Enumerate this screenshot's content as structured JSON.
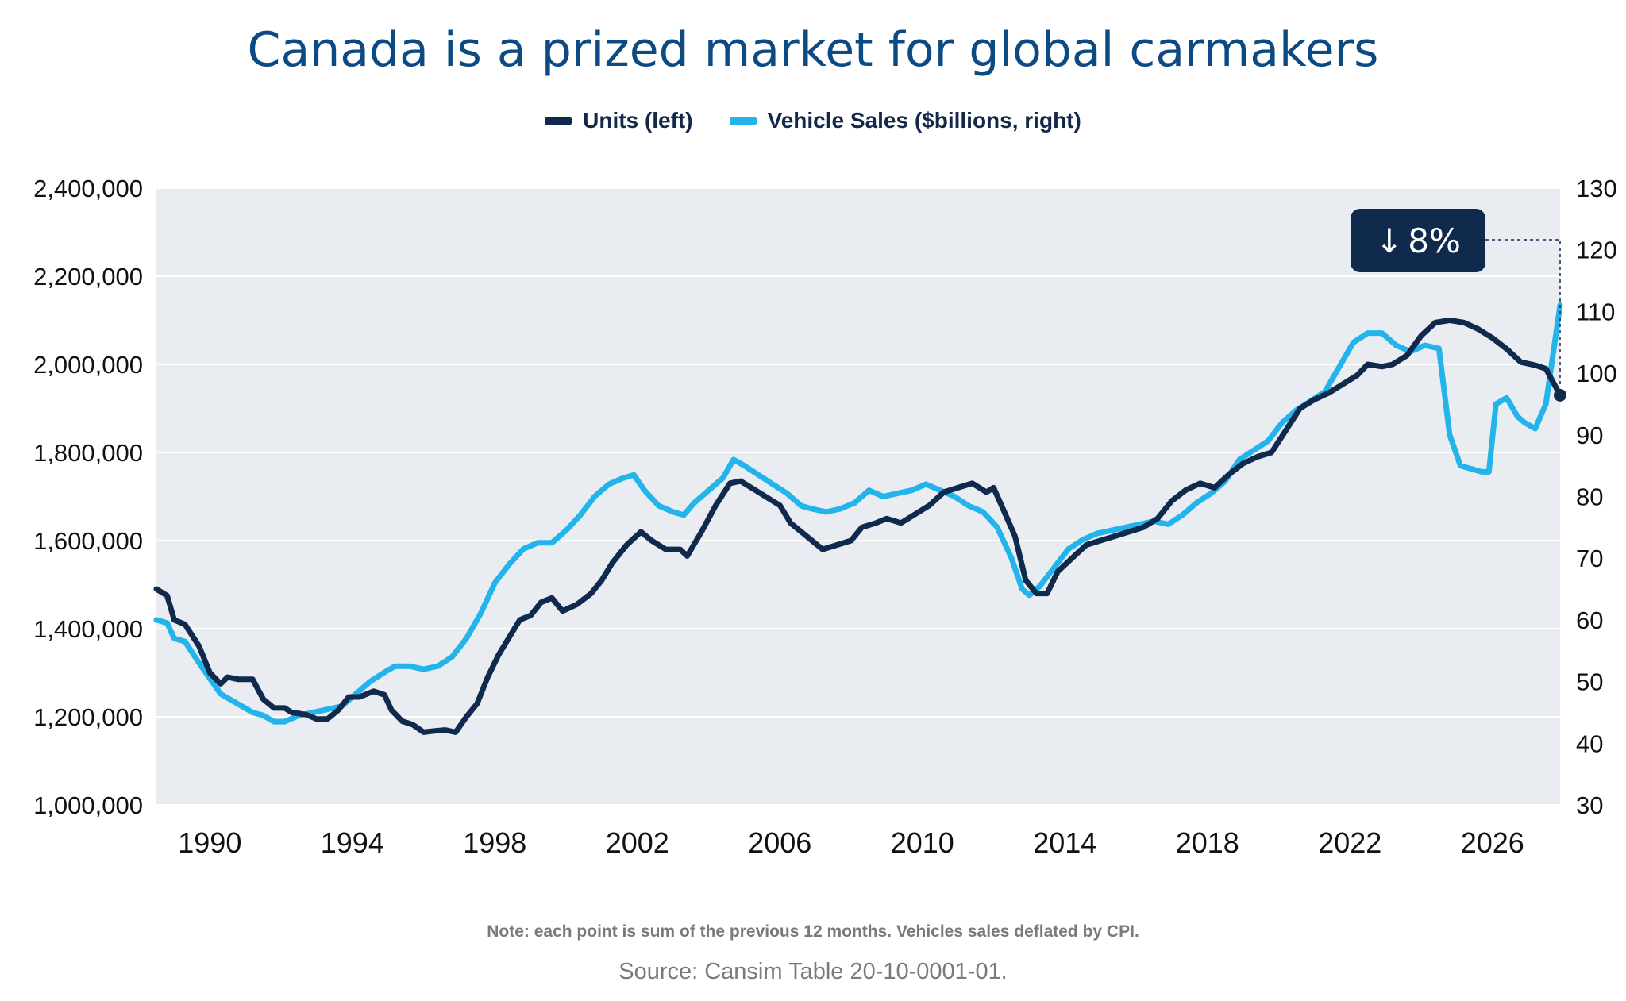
{
  "title": "Canada is a prized market for global carmakers",
  "legend": {
    "units": "Units (left)",
    "sales": "Vehicle Sales ($billions, right)"
  },
  "badge": {
    "arrow": "↓",
    "text": "8%"
  },
  "note": "Note: each point is sum of the previous 12 months. Vehicles sales deflated by CPI.",
  "source": "Source: Cansim Table 20-10-0001-01.",
  "colors": {
    "units": "#0f2a4d",
    "sales": "#22b4ea",
    "plot_bg": "#e9edf1",
    "grid": "#ffffff",
    "badge_bg": "#0f2a4d"
  },
  "chart_data": {
    "type": "line",
    "title": "Canada is a prized market for global carmakers",
    "x_ticks": [
      1990,
      1994,
      1998,
      2002,
      2006,
      2010,
      2014,
      2018,
      2022,
      2026
    ],
    "xlim": [
      1988.5,
      2027.9
    ],
    "y_left": {
      "lim": [
        1000000,
        2400000
      ],
      "ticks": [
        1000000,
        1200000,
        1400000,
        1600000,
        1800000,
        2000000,
        2200000,
        2400000
      ],
      "tick_labels": [
        "1,000,000",
        "1,200,000",
        "1,400,000",
        "1,600,000",
        "1,800,000",
        "2,000,000",
        "2,200,000",
        "2,400,000"
      ]
    },
    "y_right": {
      "lim": [
        30,
        130
      ],
      "ticks": [
        30,
        40,
        50,
        60,
        70,
        80,
        90,
        100,
        110,
        120,
        130
      ],
      "tick_labels": [
        "30",
        "40",
        "50",
        "60",
        "70",
        "80",
        "90",
        "100",
        "110",
        "120",
        "130"
      ]
    },
    "grid": true,
    "legend_position": "top-center",
    "annotation": "↓8%",
    "series": [
      {
        "name": "Units (left)",
        "axis": "left",
        "points": [
          [
            1988.5,
            1490000
          ],
          [
            1988.8,
            1475000
          ],
          [
            1989.0,
            1420000
          ],
          [
            1989.3,
            1410000
          ],
          [
            1989.7,
            1360000
          ],
          [
            1990.0,
            1300000
          ],
          [
            1990.3,
            1275000
          ],
          [
            1990.5,
            1290000
          ],
          [
            1990.8,
            1285000
          ],
          [
            1991.2,
            1285000
          ],
          [
            1991.5,
            1240000
          ],
          [
            1991.8,
            1220000
          ],
          [
            1992.1,
            1220000
          ],
          [
            1992.3,
            1210000
          ],
          [
            1992.7,
            1205000
          ],
          [
            1993.0,
            1195000
          ],
          [
            1993.3,
            1195000
          ],
          [
            1993.6,
            1215000
          ],
          [
            1993.9,
            1245000
          ],
          [
            1994.2,
            1245000
          ],
          [
            1994.6,
            1258000
          ],
          [
            1994.9,
            1250000
          ],
          [
            1995.1,
            1215000
          ],
          [
            1995.4,
            1190000
          ],
          [
            1995.7,
            1182000
          ],
          [
            1996.0,
            1165000
          ],
          [
            1996.3,
            1168000
          ],
          [
            1996.6,
            1170000
          ],
          [
            1996.9,
            1165000
          ],
          [
            1997.2,
            1200000
          ],
          [
            1997.5,
            1230000
          ],
          [
            1997.8,
            1290000
          ],
          [
            1998.1,
            1340000
          ],
          [
            1998.4,
            1380000
          ],
          [
            1998.7,
            1420000
          ],
          [
            1999.0,
            1430000
          ],
          [
            1999.3,
            1460000
          ],
          [
            1999.6,
            1470000
          ],
          [
            1999.9,
            1440000
          ],
          [
            2000.3,
            1455000
          ],
          [
            2000.7,
            1480000
          ],
          [
            2001.0,
            1510000
          ],
          [
            2001.3,
            1550000
          ],
          [
            2001.7,
            1590000
          ],
          [
            2002.1,
            1620000
          ],
          [
            2002.4,
            1600000
          ],
          [
            2002.8,
            1580000
          ],
          [
            2003.2,
            1580000
          ],
          [
            2003.4,
            1565000
          ],
          [
            2003.8,
            1620000
          ],
          [
            2004.2,
            1680000
          ],
          [
            2004.6,
            1730000
          ],
          [
            2004.9,
            1735000
          ],
          [
            2005.3,
            1715000
          ],
          [
            2005.7,
            1695000
          ],
          [
            2006.0,
            1680000
          ],
          [
            2006.3,
            1640000
          ],
          [
            2006.6,
            1620000
          ],
          [
            2006.9,
            1600000
          ],
          [
            2007.2,
            1580000
          ],
          [
            2007.6,
            1590000
          ],
          [
            2008.0,
            1600000
          ],
          [
            2008.3,
            1630000
          ],
          [
            2008.7,
            1640000
          ],
          [
            2009.0,
            1650000
          ],
          [
            2009.4,
            1640000
          ],
          [
            2009.8,
            1660000
          ],
          [
            2010.2,
            1680000
          ],
          [
            2010.6,
            1710000
          ],
          [
            2011.0,
            1720000
          ],
          [
            2011.4,
            1730000
          ],
          [
            2011.8,
            1710000
          ],
          [
            2012.0,
            1720000
          ],
          [
            2012.3,
            1665000
          ],
          [
            2012.6,
            1610000
          ],
          [
            2012.9,
            1510000
          ],
          [
            2013.2,
            1480000
          ],
          [
            2013.5,
            1480000
          ],
          [
            2013.8,
            1530000
          ],
          [
            2014.2,
            1560000
          ],
          [
            2014.6,
            1590000
          ],
          [
            2015.0,
            1600000
          ],
          [
            2015.4,
            1610000
          ],
          [
            2015.8,
            1620000
          ],
          [
            2016.2,
            1630000
          ],
          [
            2016.6,
            1650000
          ],
          [
            2017.0,
            1690000
          ],
          [
            2017.4,
            1715000
          ],
          [
            2017.8,
            1730000
          ],
          [
            2018.2,
            1720000
          ],
          [
            2018.6,
            1750000
          ],
          [
            2019.0,
            1775000
          ],
          [
            2019.4,
            1790000
          ],
          [
            2019.8,
            1800000
          ],
          [
            2020.2,
            1850000
          ],
          [
            2020.6,
            1900000
          ],
          [
            2021.0,
            1920000
          ],
          [
            2021.4,
            1935000
          ],
          [
            2021.8,
            1955000
          ],
          [
            2022.2,
            1975000
          ],
          [
            2022.5,
            2000000
          ],
          [
            2022.9,
            1995000
          ],
          [
            2023.2,
            2000000
          ],
          [
            2023.6,
            2020000
          ],
          [
            2024.0,
            2065000
          ],
          [
            2024.4,
            2095000
          ],
          [
            2024.8,
            2100000
          ],
          [
            2025.2,
            2095000
          ],
          [
            2025.6,
            2080000
          ],
          [
            2026.0,
            2060000
          ],
          [
            2026.4,
            2035000
          ],
          [
            2026.8,
            2005000
          ],
          [
            2027.2,
            1998000
          ],
          [
            2027.5,
            1990000
          ],
          [
            2027.9,
            1930000
          ]
        ]
      },
      {
        "name": "Vehicle Sales ($billions, right)",
        "axis": "right",
        "points": [
          [
            1988.5,
            60.0
          ],
          [
            1988.8,
            59.5
          ],
          [
            1989.0,
            57.0
          ],
          [
            1989.3,
            56.5
          ],
          [
            1989.7,
            53.0
          ],
          [
            1990.0,
            50.5
          ],
          [
            1990.3,
            48.0
          ],
          [
            1990.6,
            47.0
          ],
          [
            1990.9,
            46.0
          ],
          [
            1991.2,
            45.0
          ],
          [
            1991.5,
            44.5
          ],
          [
            1991.8,
            43.5
          ],
          [
            1992.1,
            43.5
          ],
          [
            1992.5,
            44.5
          ],
          [
            1992.9,
            45.0
          ],
          [
            1993.3,
            45.5
          ],
          [
            1993.7,
            46.0
          ],
          [
            1994.1,
            48.0
          ],
          [
            1994.5,
            50.0
          ],
          [
            1994.9,
            51.5
          ],
          [
            1995.2,
            52.5
          ],
          [
            1995.6,
            52.5
          ],
          [
            1996.0,
            52.0
          ],
          [
            1996.4,
            52.5
          ],
          [
            1996.8,
            54.0
          ],
          [
            1997.2,
            57.0
          ],
          [
            1997.6,
            61.0
          ],
          [
            1998.0,
            66.0
          ],
          [
            1998.4,
            69.0
          ],
          [
            1998.8,
            71.5
          ],
          [
            1999.2,
            72.5
          ],
          [
            1999.6,
            72.5
          ],
          [
            2000.0,
            74.5
          ],
          [
            2000.4,
            77.0
          ],
          [
            2000.8,
            80.0
          ],
          [
            2001.2,
            82.0
          ],
          [
            2001.6,
            83.0
          ],
          [
            2001.9,
            83.5
          ],
          [
            2002.2,
            81.0
          ],
          [
            2002.6,
            78.5
          ],
          [
            2003.0,
            77.5
          ],
          [
            2003.3,
            77.0
          ],
          [
            2003.6,
            79.0
          ],
          [
            2004.0,
            81.0
          ],
          [
            2004.4,
            83.0
          ],
          [
            2004.7,
            86.0
          ],
          [
            2005.0,
            85.0
          ],
          [
            2005.4,
            83.5
          ],
          [
            2005.8,
            82.0
          ],
          [
            2006.2,
            80.5
          ],
          [
            2006.6,
            78.5
          ],
          [
            2006.9,
            78.0
          ],
          [
            2007.3,
            77.5
          ],
          [
            2007.7,
            78.0
          ],
          [
            2008.1,
            79.0
          ],
          [
            2008.5,
            81.0
          ],
          [
            2008.9,
            80.0
          ],
          [
            2009.3,
            80.5
          ],
          [
            2009.7,
            81.0
          ],
          [
            2010.1,
            82.0
          ],
          [
            2010.5,
            81.0
          ],
          [
            2010.9,
            80.0
          ],
          [
            2011.3,
            78.5
          ],
          [
            2011.7,
            77.5
          ],
          [
            2012.1,
            75.0
          ],
          [
            2012.5,
            70.0
          ],
          [
            2012.8,
            65.0
          ],
          [
            2013.0,
            64.0
          ],
          [
            2013.3,
            65.5
          ],
          [
            2013.7,
            68.5
          ],
          [
            2014.1,
            71.5
          ],
          [
            2014.5,
            73.0
          ],
          [
            2014.9,
            74.0
          ],
          [
            2015.3,
            74.5
          ],
          [
            2015.7,
            75.0
          ],
          [
            2016.1,
            75.5
          ],
          [
            2016.5,
            76.0
          ],
          [
            2016.9,
            75.5
          ],
          [
            2017.3,
            77.0
          ],
          [
            2017.7,
            79.0
          ],
          [
            2018.1,
            80.5
          ],
          [
            2018.5,
            82.5
          ],
          [
            2018.9,
            86.0
          ],
          [
            2019.3,
            87.5
          ],
          [
            2019.7,
            89.0
          ],
          [
            2020.1,
            92.0
          ],
          [
            2020.5,
            94.0
          ],
          [
            2020.9,
            95.5
          ],
          [
            2021.3,
            97.0
          ],
          [
            2021.7,
            101.0
          ],
          [
            2022.1,
            105.0
          ],
          [
            2022.5,
            106.5
          ],
          [
            2022.9,
            106.5
          ],
          [
            2023.3,
            104.5
          ],
          [
            2023.7,
            103.5
          ],
          [
            2024.1,
            104.5
          ],
          [
            2024.5,
            104.0
          ],
          [
            2024.8,
            90.0
          ],
          [
            2025.1,
            85.0
          ],
          [
            2025.4,
            84.5
          ],
          [
            2025.7,
            84.0
          ],
          [
            2025.9,
            84.0
          ],
          [
            2026.1,
            95.0
          ],
          [
            2026.4,
            96.0
          ],
          [
            2026.7,
            93.0
          ],
          [
            2026.9,
            92.0
          ],
          [
            2027.2,
            91.0
          ],
          [
            2027.5,
            95.0
          ],
          [
            2027.7,
            103.0
          ],
          [
            2027.9,
            111.0
          ]
        ]
      }
    ]
  }
}
